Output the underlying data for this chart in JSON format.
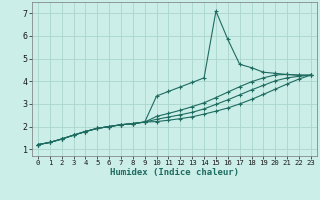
{
  "xlabel": "Humidex (Indice chaleur)",
  "bg_color": "#cceee8",
  "grid_color": "#aad4cc",
  "line_color": "#1e6b60",
  "xlim": [
    -0.5,
    23.5
  ],
  "ylim": [
    0.7,
    7.5
  ],
  "x_ticks": [
    0,
    1,
    2,
    3,
    4,
    5,
    6,
    7,
    8,
    9,
    10,
    11,
    12,
    13,
    14,
    15,
    16,
    17,
    18,
    19,
    20,
    21,
    22,
    23
  ],
  "y_ticks": [
    1,
    2,
    3,
    4,
    5,
    6,
    7
  ],
  "line1_x": [
    0,
    1,
    2,
    3,
    4,
    5,
    6,
    7,
    8,
    9,
    10,
    11,
    12,
    13,
    14,
    15,
    16,
    17,
    18,
    19,
    20,
    21,
    22,
    23
  ],
  "line1_y": [
    1.2,
    1.3,
    1.45,
    1.62,
    1.78,
    1.92,
    2.0,
    2.08,
    2.13,
    2.2,
    3.35,
    3.55,
    3.75,
    3.95,
    4.15,
    7.1,
    5.85,
    4.75,
    4.6,
    4.4,
    4.35,
    4.3,
    4.27,
    4.27
  ],
  "line2_x": [
    0,
    1,
    2,
    3,
    4,
    5,
    6,
    7,
    8,
    9,
    10,
    11,
    12,
    13,
    14,
    15,
    16,
    17,
    18,
    19,
    20,
    21,
    22,
    23
  ],
  "line2_y": [
    1.2,
    1.3,
    1.45,
    1.62,
    1.78,
    1.92,
    2.0,
    2.08,
    2.13,
    2.2,
    2.45,
    2.58,
    2.72,
    2.88,
    3.05,
    3.28,
    3.52,
    3.76,
    3.98,
    4.15,
    4.28,
    4.3,
    4.27,
    4.27
  ],
  "line3_x": [
    0,
    1,
    2,
    3,
    4,
    5,
    6,
    7,
    8,
    9,
    10,
    11,
    12,
    13,
    14,
    15,
    16,
    17,
    18,
    19,
    20,
    21,
    22,
    23
  ],
  "line3_y": [
    1.2,
    1.3,
    1.45,
    1.62,
    1.78,
    1.92,
    2.0,
    2.08,
    2.13,
    2.2,
    2.32,
    2.42,
    2.52,
    2.63,
    2.78,
    2.98,
    3.18,
    3.4,
    3.62,
    3.82,
    4.02,
    4.15,
    4.22,
    4.27
  ],
  "line4_x": [
    0,
    1,
    2,
    3,
    4,
    5,
    6,
    7,
    8,
    9,
    10,
    11,
    12,
    13,
    14,
    15,
    16,
    17,
    18,
    19,
    20,
    21,
    22,
    23
  ],
  "line4_y": [
    1.2,
    1.3,
    1.45,
    1.62,
    1.78,
    1.92,
    2.0,
    2.08,
    2.13,
    2.2,
    2.22,
    2.28,
    2.35,
    2.43,
    2.55,
    2.68,
    2.82,
    3.0,
    3.2,
    3.42,
    3.65,
    3.88,
    4.1,
    4.27
  ]
}
